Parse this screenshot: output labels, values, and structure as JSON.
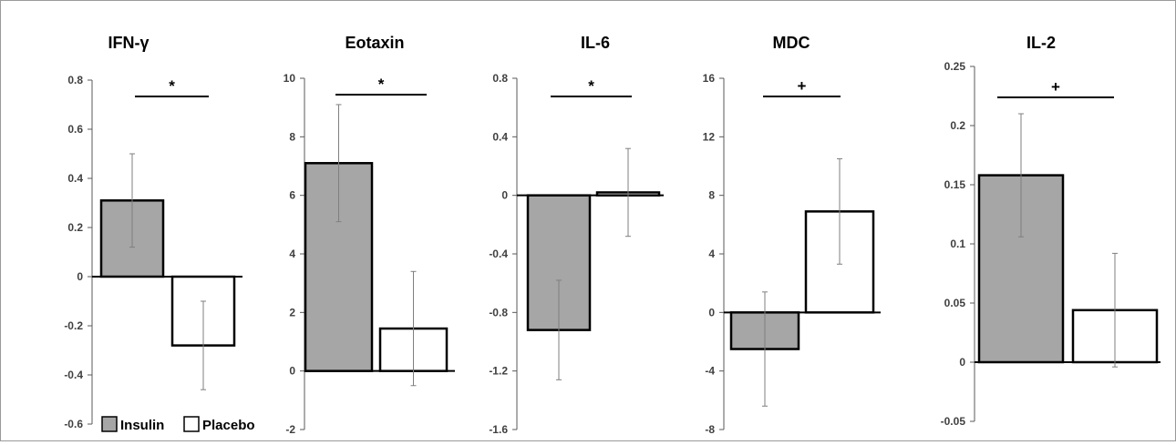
{
  "chart_data": [
    {
      "type": "bar",
      "title": "IFN-γ",
      "categories": [
        "Insulin",
        "Placebo"
      ],
      "values": [
        0.31,
        -0.28
      ],
      "errors": [
        0.19,
        0.18
      ],
      "ylim": [
        -0.6,
        0.8
      ],
      "yticks": [
        "0.8",
        "0.6",
        "0.4",
        "0.2",
        "0",
        "-0.2",
        "-0.4",
        "-0.6"
      ],
      "significance": "*"
    },
    {
      "type": "bar",
      "title": "Eotaxin",
      "categories": [
        "Insulin",
        "Placebo"
      ],
      "values": [
        7.1,
        1.45
      ],
      "errors": [
        2.0,
        1.95
      ],
      "ylim": [
        -2,
        10
      ],
      "yticks": [
        "10",
        "8",
        "6",
        "4",
        "2",
        "0",
        "-2"
      ],
      "significance": "*"
    },
    {
      "type": "bar",
      "title": "IL-6",
      "categories": [
        "Insulin",
        "Placebo"
      ],
      "values": [
        -0.92,
        0.02
      ],
      "errors": [
        0.34,
        0.3
      ],
      "ylim": [
        -1.6,
        0.8
      ],
      "yticks": [
        "0.8",
        "0.4",
        "0",
        "-0.4",
        "-0.8",
        "-1.2",
        "-1.6"
      ],
      "significance": "*"
    },
    {
      "type": "bar",
      "title": "MDC",
      "categories": [
        "Insulin",
        "Placebo"
      ],
      "values": [
        -2.5,
        6.9
      ],
      "errors": [
        3.9,
        3.6
      ],
      "ylim": [
        -8,
        16
      ],
      "yticks": [
        "16",
        "12",
        "8",
        "4",
        "0",
        "-4",
        "-8"
      ],
      "significance": "+"
    },
    {
      "type": "bar",
      "title": "IL-2",
      "categories": [
        "Insulin",
        "Placebo"
      ],
      "values": [
        0.158,
        0.044
      ],
      "errors": [
        0.052,
        0.048
      ],
      "ylim": [
        -0.05,
        0.25
      ],
      "yticks": [
        "0.25",
        "0.2",
        "0.15",
        "0.1",
        "0.05",
        "0",
        "-0.05"
      ],
      "significance": "+"
    }
  ],
  "legend": {
    "insulin_label": "Insulin",
    "placebo_label": "Placebo",
    "insulin_color": "#a6a6a6",
    "placebo_color": "#ffffff"
  }
}
